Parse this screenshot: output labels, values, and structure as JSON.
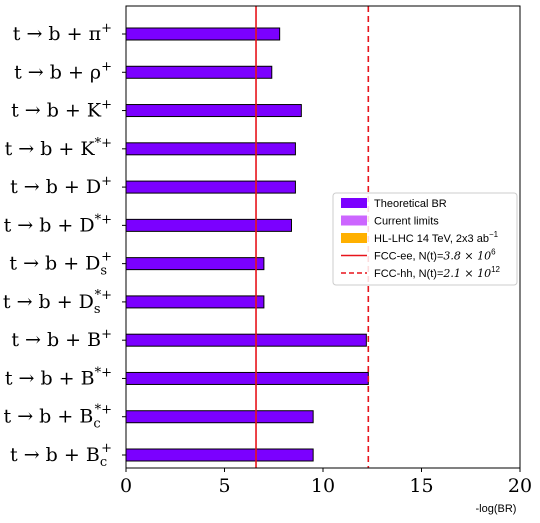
{
  "chart_data": {
    "type": "bar",
    "orientation": "horizontal",
    "categories": [
      {
        "base": "t → b + π",
        "sup": "+",
        "sub": ""
      },
      {
        "base": "t → b + ρ",
        "sup": "+",
        "sub": ""
      },
      {
        "base": "t → b + K",
        "sup": "+",
        "sub": ""
      },
      {
        "base": "t → b + K",
        "sup": "*+",
        "sub": ""
      },
      {
        "base": "t → b + D",
        "sup": "+",
        "sub": ""
      },
      {
        "base": "t → b + D",
        "sup": "*+",
        "sub": ""
      },
      {
        "base": "t → b + D",
        "sup": "+",
        "sub": "s"
      },
      {
        "base": "t → b + D",
        "sup": "*+",
        "sub": "s"
      },
      {
        "base": "t → b + B",
        "sup": "+",
        "sub": ""
      },
      {
        "base": "t → b + B",
        "sup": "*+",
        "sub": ""
      },
      {
        "base": "t → b + B",
        "sup": "*+",
        "sub": "c"
      },
      {
        "base": "t → b + B",
        "sup": "+",
        "sub": "c"
      }
    ],
    "series": [
      {
        "name": "Theoretical BR",
        "color": "#7b00ff",
        "values": [
          7.8,
          7.4,
          8.9,
          8.6,
          8.6,
          8.4,
          7.0,
          7.0,
          12.2,
          12.3,
          9.5,
          9.5
        ]
      }
    ],
    "reference_lines": [
      {
        "name": "FCC-ee, N(t)=",
        "value_text": "3.8 × 10",
        "value_exp": "6",
        "x": 6.6,
        "color": "#e8141b",
        "style": "solid"
      },
      {
        "name": "FCC-hh, N(t)=",
        "value_text": "2.1 × 10",
        "value_exp": "12",
        "x": 12.3,
        "color": "#e8141b",
        "style": "dashed"
      }
    ],
    "legend": {
      "placement": "center-right",
      "entries": [
        {
          "label": "Theoretical BR",
          "sup": "",
          "color": "#7b00ff",
          "kind": "patch"
        },
        {
          "label": "Current limits",
          "sup": "",
          "color": "#cc66ff",
          "kind": "patch"
        },
        {
          "label": "HL-LHC 14 TeV, 2x3 ab",
          "sup": "−1",
          "color": "#ffb000",
          "kind": "patch"
        },
        {
          "label": "FCC-ee, N(t)=",
          "math": "3.8 × 10",
          "sup": "6",
          "color": "#e8141b",
          "kind": "line"
        },
        {
          "label": "FCC-hh, N(t)=",
          "math": "2.1 × 10",
          "sup": "12",
          "color": "#e8141b",
          "kind": "dashed"
        }
      ]
    },
    "xlim": [
      0,
      20
    ],
    "xticks": [
      "0",
      "5",
      "10",
      "15",
      "20"
    ],
    "xlabel": "-log(BR)",
    "ylabel": "",
    "title": "",
    "grid": false
  }
}
